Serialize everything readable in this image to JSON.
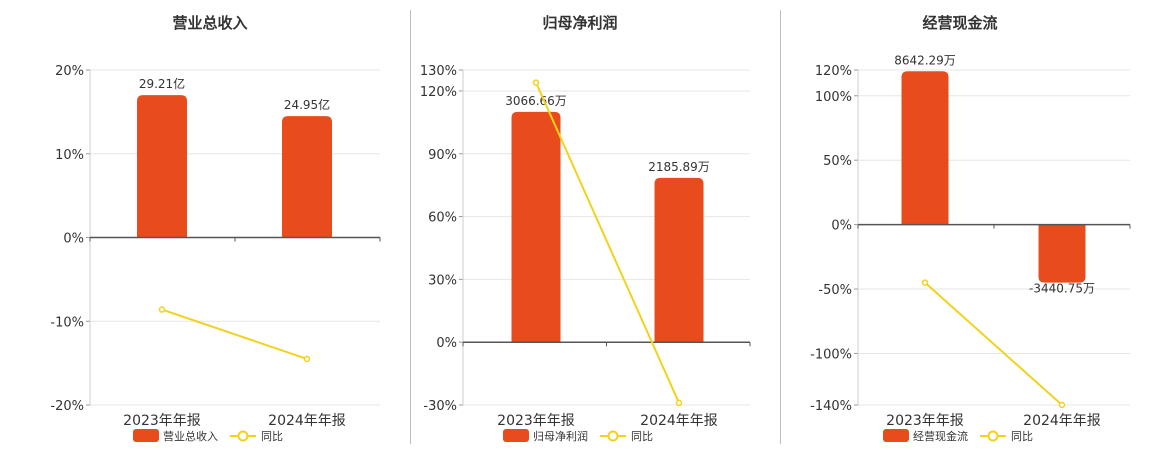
{
  "legend_yoy_label": "同比",
  "chart_data": [
    {
      "type": "bar",
      "title": "营业总收入",
      "categories": [
        "2023年年报",
        "2024年年报"
      ],
      "series": [
        {
          "name": "营业总收入",
          "type": "bar",
          "values": [
            17,
            14.5
          ],
          "labels": [
            "29.21亿",
            "24.95亿"
          ],
          "color": "#e84c1c"
        },
        {
          "name": "同比",
          "type": "line",
          "values": [
            -8.6,
            -14.5
          ],
          "color": "#f2d21c"
        }
      ],
      "y_ticks": [
        20,
        10,
        0,
        -10,
        -20
      ],
      "y_tick_labels": [
        "20%",
        "10%",
        "0%",
        "-10%",
        "-20%"
      ],
      "ylim": [
        -20,
        20
      ],
      "grid": true,
      "legend_position": "bottom"
    },
    {
      "type": "bar",
      "title": "归母净利润",
      "categories": [
        "2023年年报",
        "2024年年报"
      ],
      "series": [
        {
          "name": "归母净利润",
          "type": "bar",
          "values": [
            110,
            78.5
          ],
          "labels": [
            "3066.66万",
            "2185.89万"
          ],
          "color": "#e84c1c"
        },
        {
          "name": "同比",
          "type": "line",
          "values": [
            124,
            -29
          ],
          "color": "#f2d21c"
        }
      ],
      "y_ticks": [
        130,
        120,
        90,
        60,
        30,
        0,
        -30
      ],
      "y_tick_labels": [
        "130%",
        "120%",
        "90%",
        "60%",
        "30%",
        "0%",
        "-30%"
      ],
      "ylim": [
        -30,
        130
      ],
      "grid": true,
      "legend_position": "bottom"
    },
    {
      "type": "bar",
      "title": "经营现金流",
      "categories": [
        "2023年年报",
        "2024年年报"
      ],
      "series": [
        {
          "name": "经营现金流",
          "type": "bar",
          "values": [
            119,
            -45
          ],
          "labels": [
            "8642.29万",
            "-3440.75万"
          ],
          "color": "#e84c1c"
        },
        {
          "name": "同比",
          "type": "line",
          "values": [
            -45,
            -140
          ],
          "color": "#f2d21c"
        }
      ],
      "y_ticks": [
        120,
        100,
        50,
        0,
        -50,
        -100,
        -140
      ],
      "y_tick_labels": [
        "120%",
        "100%",
        "50%",
        "0%",
        "-50%",
        "-100%",
        "-140%"
      ],
      "ylim": [
        -140,
        120
      ],
      "grid": true,
      "legend_position": "bottom"
    }
  ]
}
